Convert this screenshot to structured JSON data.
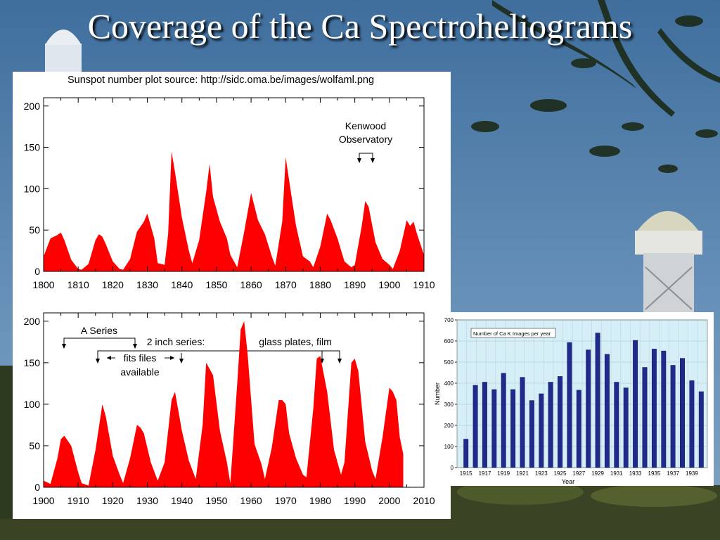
{
  "slide": {
    "title": "Coverage of the Ca Spectroheliograms",
    "colors": {
      "sky": "#5e84ad",
      "title_text": "#ffffff",
      "sunspot_fill": "#ff0000",
      "bar_fill": "#202a8a",
      "bar_plot_bg": "#d6eef6"
    }
  },
  "source_note": "Sunspot number plot source: http://sidc.oma.be/images/wolfaml.png",
  "chart_data": [
    {
      "type": "area",
      "name": "sunspot-1800-1910",
      "xlim": [
        1800,
        1910
      ],
      "ylim": [
        0,
        210
      ],
      "xticks": [
        "1800",
        "1810",
        "1820",
        "1830",
        "1840",
        "1850",
        "1860",
        "1870",
        "1880",
        "1890",
        "1900",
        "1910"
      ],
      "yticks": [
        "0",
        "50",
        "100",
        "150",
        "200"
      ],
      "x": [
        1800,
        1802,
        1804,
        1805,
        1806,
        1808,
        1810,
        1811,
        1813,
        1815,
        1816,
        1817,
        1818,
        1820,
        1822,
        1823,
        1825,
        1827,
        1829,
        1830,
        1832,
        1833,
        1835,
        1836,
        1837,
        1838,
        1840,
        1842,
        1843,
        1845,
        1847,
        1848,
        1849,
        1851,
        1853,
        1854,
        1856,
        1858,
        1860,
        1862,
        1864,
        1866,
        1867,
        1869,
        1870,
        1871,
        1873,
        1875,
        1877,
        1878,
        1880,
        1882,
        1883,
        1885,
        1887,
        1889,
        1890,
        1892,
        1893,
        1894,
        1896,
        1898,
        1900,
        1901,
        1903,
        1905,
        1906,
        1907,
        1908,
        1910
      ],
      "values": [
        18,
        40,
        44,
        47,
        38,
        14,
        3,
        2,
        9,
        38,
        45,
        42,
        33,
        12,
        3,
        2,
        15,
        48,
        60,
        70,
        40,
        10,
        8,
        45,
        145,
        120,
        65,
        25,
        10,
        38,
        96,
        130,
        90,
        60,
        40,
        20,
        5,
        48,
        95,
        62,
        45,
        18,
        7,
        60,
        138,
        110,
        55,
        18,
        12,
        5,
        30,
        70,
        62,
        40,
        12,
        5,
        8,
        55,
        85,
        78,
        35,
        15,
        8,
        3,
        25,
        62,
        55,
        60,
        45,
        20
      ],
      "annotations": {
        "label_line1": "Kenwood",
        "label_line2": "Observatory"
      }
    },
    {
      "type": "area",
      "name": "sunspot-1900-2010",
      "xlim": [
        1900,
        2010
      ],
      "ylim": [
        0,
        210
      ],
      "xticks": [
        "1900",
        "1910",
        "1920",
        "1930",
        "1940",
        "1950",
        "1960",
        "1970",
        "1980",
        "1990",
        "2000",
        "2010"
      ],
      "yticks": [
        "0",
        "50",
        "100",
        "150",
        "200"
      ],
      "x": [
        1900,
        1902,
        1904,
        1905,
        1906,
        1908,
        1910,
        1911,
        1913,
        1915,
        1917,
        1918,
        1920,
        1922,
        1923,
        1925,
        1927,
        1928,
        1929,
        1931,
        1933,
        1935,
        1937,
        1938,
        1940,
        1942,
        1944,
        1946,
        1947,
        1949,
        1951,
        1953,
        1954,
        1956,
        1957,
        1958,
        1959,
        1961,
        1963,
        1964,
        1966,
        1968,
        1969,
        1970,
        1971,
        1973,
        1975,
        1976,
        1978,
        1979,
        1980,
        1982,
        1984,
        1986,
        1987,
        1989,
        1990,
        1991,
        1993,
        1995,
        1996,
        1998,
        2000,
        2001,
        2002,
        2003,
        2004
      ],
      "values": [
        8,
        4,
        35,
        58,
        62,
        50,
        18,
        5,
        2,
        45,
        100,
        85,
        38,
        15,
        5,
        35,
        75,
        72,
        65,
        30,
        8,
        30,
        105,
        115,
        68,
        32,
        10,
        75,
        150,
        135,
        68,
        30,
        5,
        125,
        190,
        200,
        160,
        52,
        28,
        10,
        48,
        105,
        105,
        100,
        65,
        35,
        15,
        12,
        95,
        155,
        158,
        115,
        45,
        15,
        30,
        150,
        155,
        140,
        55,
        20,
        10,
        60,
        120,
        115,
        105,
        60,
        40
      ],
      "annotations": {
        "a_series": "A Series",
        "two_inch": "2 inch series:",
        "glass_film": "glass plates,  film",
        "fits_line1": "fits files",
        "fits_line2": "available"
      }
    },
    {
      "type": "bar",
      "name": "ca-k-images-per-year",
      "title": "Number of Ca K Images per year",
      "xlabel": "Year",
      "ylabel": "Number",
      "ylim": [
        0,
        700
      ],
      "yticks": [
        "0",
        "100",
        "200",
        "300",
        "400",
        "500",
        "600",
        "700"
      ],
      "xticks": [
        "1915",
        "1917",
        "1919",
        "1921",
        "1923",
        "1925",
        "1927",
        "1929",
        "1931",
        "1933",
        "1935",
        "1937",
        "1939"
      ],
      "categories": [
        "1915",
        "1916",
        "1917",
        "1918",
        "1919",
        "1920",
        "1921",
        "1922",
        "1923",
        "1924",
        "1925",
        "1926",
        "1927",
        "1928",
        "1929",
        "1930",
        "1931",
        "1932",
        "1933",
        "1934",
        "1935",
        "1936",
        "1937",
        "1938",
        "1939",
        "1940"
      ],
      "values": [
        135,
        390,
        405,
        370,
        447,
        370,
        428,
        318,
        350,
        405,
        432,
        593,
        367,
        558,
        638,
        537,
        405,
        378,
        603,
        475,
        562,
        553,
        485,
        518,
        412,
        360
      ]
    }
  ]
}
